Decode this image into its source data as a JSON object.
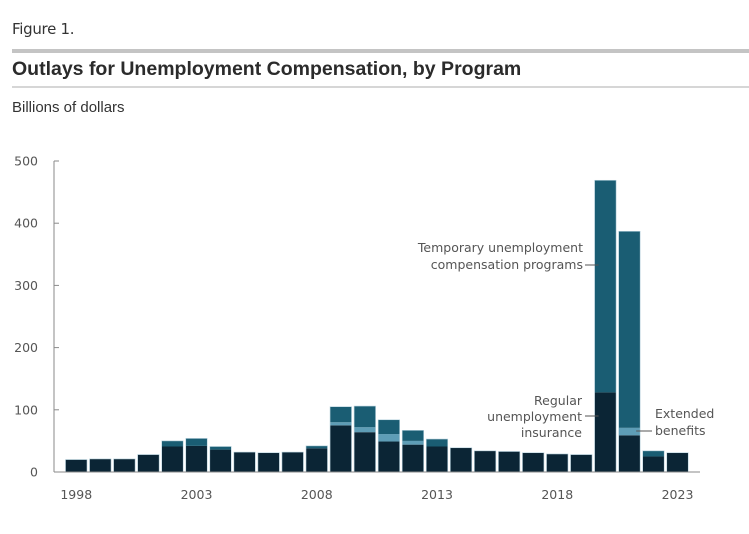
{
  "header": {
    "figure_label": "Figure 1.",
    "title": "Outlays for Unemployment Compensation, by Program",
    "units": "Billions of dollars"
  },
  "chart_data": {
    "type": "bar",
    "stacked": true,
    "title": "Outlays for Unemployment Compensation, by Program",
    "ylabel": "Billions of dollars",
    "xlabel": "",
    "ylim": [
      0,
      500
    ],
    "yticks": [
      0,
      100,
      200,
      300,
      400,
      500
    ],
    "xtick_labels": [
      "1998",
      "2003",
      "2008",
      "2013",
      "2018",
      "2023"
    ],
    "grid": false,
    "legend": "inline annotations",
    "categories": [
      "1998",
      "1999",
      "2000",
      "2001",
      "2002",
      "2003",
      "2004",
      "2005",
      "2006",
      "2007",
      "2008",
      "2009",
      "2010",
      "2011",
      "2012",
      "2013",
      "2014",
      "2015",
      "2016",
      "2017",
      "2018",
      "2019",
      "2020",
      "2021",
      "2022",
      "2023"
    ],
    "series": [
      {
        "name": "Regular unemployment insurance",
        "color": "#0b2535",
        "values": [
          20,
          21,
          21,
          28,
          41,
          42,
          36,
          32,
          31,
          32,
          38,
          75,
          64,
          49,
          44,
          41,
          39,
          34,
          33,
          31,
          29,
          28,
          128,
          59,
          25,
          31
        ]
      },
      {
        "name": "Extended benefits",
        "color": "#5e9db6",
        "values": [
          0,
          0,
          0,
          0,
          0,
          0,
          0,
          0,
          0,
          0,
          0,
          5,
          8,
          12,
          6,
          0,
          0,
          0,
          0,
          0,
          0,
          0,
          0,
          12,
          0,
          0
        ]
      },
      {
        "name": "Temporary unemployment compensation programs",
        "color": "#1a5d73",
        "values": [
          0,
          0,
          0,
          0,
          9,
          12,
          5,
          0,
          0,
          0,
          4,
          25,
          34,
          23,
          17,
          12,
          0,
          0,
          0,
          0,
          0,
          0,
          341,
          316,
          9,
          0
        ]
      }
    ],
    "annotations": [
      {
        "text_lines": [
          "Temporary unemployment",
          "compensation programs"
        ],
        "points_to": "2020",
        "series": "Temporary unemployment compensation programs"
      },
      {
        "text_lines": [
          "Regular",
          "unemployment",
          "insurance"
        ],
        "points_to": "2020",
        "series": "Regular unemployment insurance"
      },
      {
        "text_lines": [
          "Extended",
          "benefits"
        ],
        "points_to": "2021",
        "series": "Extended benefits"
      }
    ]
  }
}
